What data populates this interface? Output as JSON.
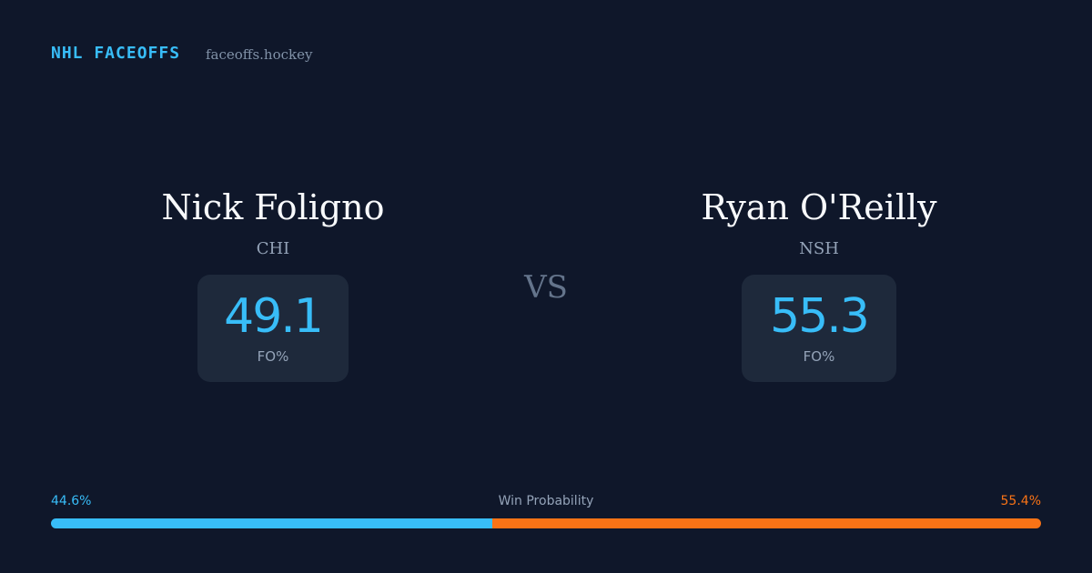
{
  "header": {
    "brand": "NHL FACEOFFS",
    "site": "faceoffs.hockey"
  },
  "players": [
    {
      "name": "Nick Foligno",
      "team": "CHI",
      "stat": 49.1,
      "stat_label": "FO%"
    },
    {
      "name": "Ryan O'Reilly",
      "team": "NSH",
      "stat": 55.3,
      "stat_label": "FO%"
    }
  ],
  "versus": "VS",
  "win_probability": {
    "label": "Win Probability",
    "left": {
      "value": 44.6,
      "label": "44.6%",
      "color": "#38bdf8"
    },
    "right": {
      "value": 55.4,
      "label": "55.4%",
      "color": "#f97316"
    }
  }
}
